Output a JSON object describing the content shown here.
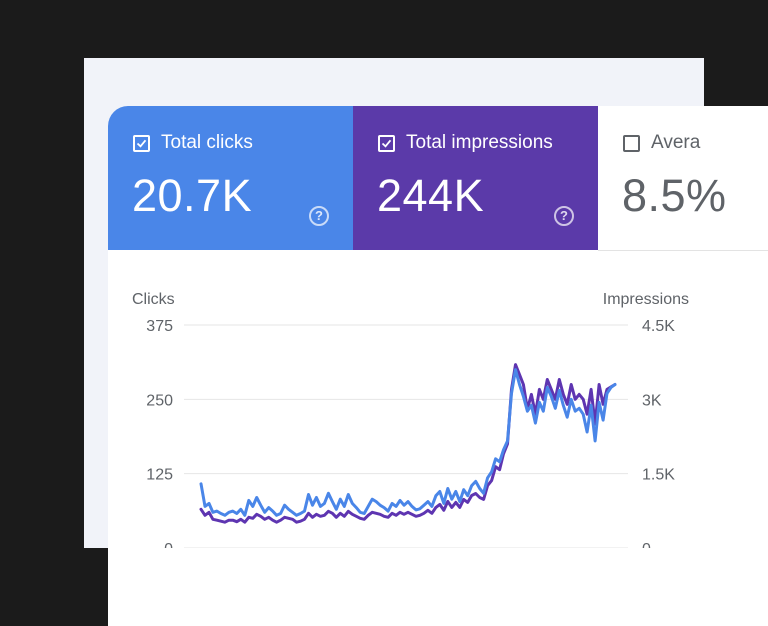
{
  "colors": {
    "clicks": "#4a86e8",
    "impressions": "#5e35b1",
    "impressions_card": "#5b3aa9",
    "clicks_line": "#4a86e8",
    "impressions_line": "#5e35b1"
  },
  "metrics": {
    "clicks": {
      "label": "Total clicks",
      "value": "20.7K",
      "checked": true,
      "help_icon": "help-circle-icon"
    },
    "impressions": {
      "label": "Total impressions",
      "value": "244K",
      "checked": true,
      "help_icon": "help-circle-icon"
    },
    "position": {
      "label": "Avera",
      "value": "8.5%",
      "checked": false
    }
  },
  "chart_data": {
    "type": "line",
    "title": "",
    "left_axis": {
      "label": "Clicks",
      "ticks": [
        "375",
        "250",
        "125",
        "0"
      ],
      "range": [
        0,
        375
      ]
    },
    "right_axis": {
      "label": "Impressions",
      "ticks": [
        "4.5K",
        "3K",
        "1.5K",
        "0"
      ],
      "range": [
        0,
        4500
      ]
    },
    "x": [
      1,
      2,
      3,
      4,
      5,
      6,
      7,
      8,
      9,
      10,
      11,
      12,
      13,
      14,
      15,
      16,
      17,
      18,
      19,
      20,
      21,
      22,
      23,
      24,
      25,
      26,
      27,
      28,
      29,
      30,
      31,
      32,
      33,
      34,
      35,
      36,
      37,
      38,
      39,
      40,
      41,
      42,
      43,
      44,
      45,
      46,
      47,
      48,
      49,
      50,
      51,
      52,
      53,
      54,
      55,
      56,
      57,
      58,
      59,
      60,
      61,
      62,
      63,
      64,
      65,
      66,
      67,
      68,
      69,
      70,
      71,
      72,
      73,
      74,
      75,
      76,
      77,
      78,
      79,
      80,
      81,
      82,
      83,
      84,
      85,
      86,
      87,
      88,
      89,
      90,
      91,
      92,
      93,
      94,
      95,
      96,
      97,
      98,
      99,
      100,
      101,
      102,
      103,
      104,
      105
    ],
    "series": [
      {
        "name": "Clicks",
        "axis": "left",
        "color": "#4a86e8",
        "values": [
          108,
          70,
          75,
          60,
          62,
          58,
          55,
          60,
          62,
          58,
          65,
          55,
          80,
          70,
          85,
          72,
          60,
          68,
          62,
          55,
          58,
          72,
          65,
          60,
          55,
          58,
          62,
          90,
          72,
          85,
          70,
          75,
          92,
          78,
          65,
          82,
          70,
          90,
          75,
          68,
          60,
          58,
          70,
          82,
          78,
          72,
          68,
          62,
          75,
          70,
          80,
          72,
          78,
          70,
          64,
          66,
          72,
          78,
          70,
          88,
          95,
          75,
          100,
          82,
          95,
          78,
          98,
          88,
          105,
          112,
          100,
          92,
          118,
          128,
          150,
          145,
          165,
          180,
          260,
          300,
          275,
          255,
          230,
          240,
          210,
          245,
          230,
          270,
          255,
          235,
          265,
          240,
          220,
          250,
          230,
          235,
          225,
          195,
          240,
          180,
          245,
          215,
          260,
          270,
          275
        ]
      },
      {
        "name": "Impressions",
        "axis": "right",
        "color": "#5e35b1",
        "values": [
          780,
          660,
          720,
          580,
          560,
          540,
          520,
          560,
          560,
          530,
          580,
          520,
          620,
          600,
          680,
          640,
          580,
          620,
          560,
          520,
          560,
          620,
          600,
          580,
          520,
          540,
          580,
          700,
          620,
          680,
          640,
          660,
          740,
          700,
          620,
          700,
          640,
          740,
          680,
          640,
          600,
          580,
          660,
          720,
          700,
          680,
          640,
          620,
          700,
          660,
          720,
          680,
          720,
          680,
          640,
          660,
          700,
          760,
          700,
          820,
          880,
          760,
          940,
          820,
          920,
          820,
          980,
          920,
          1060,
          1100,
          1020,
          980,
          1260,
          1360,
          1640,
          1580,
          1900,
          2100,
          3200,
          3700,
          3500,
          3300,
          2800,
          3100,
          2700,
          3200,
          3000,
          3400,
          3200,
          3000,
          3400,
          3100,
          2900,
          3300,
          3000,
          3100,
          3000,
          2700,
          3200,
          2500,
          3300,
          2900,
          3200,
          3250,
          3300
        ]
      }
    ]
  }
}
